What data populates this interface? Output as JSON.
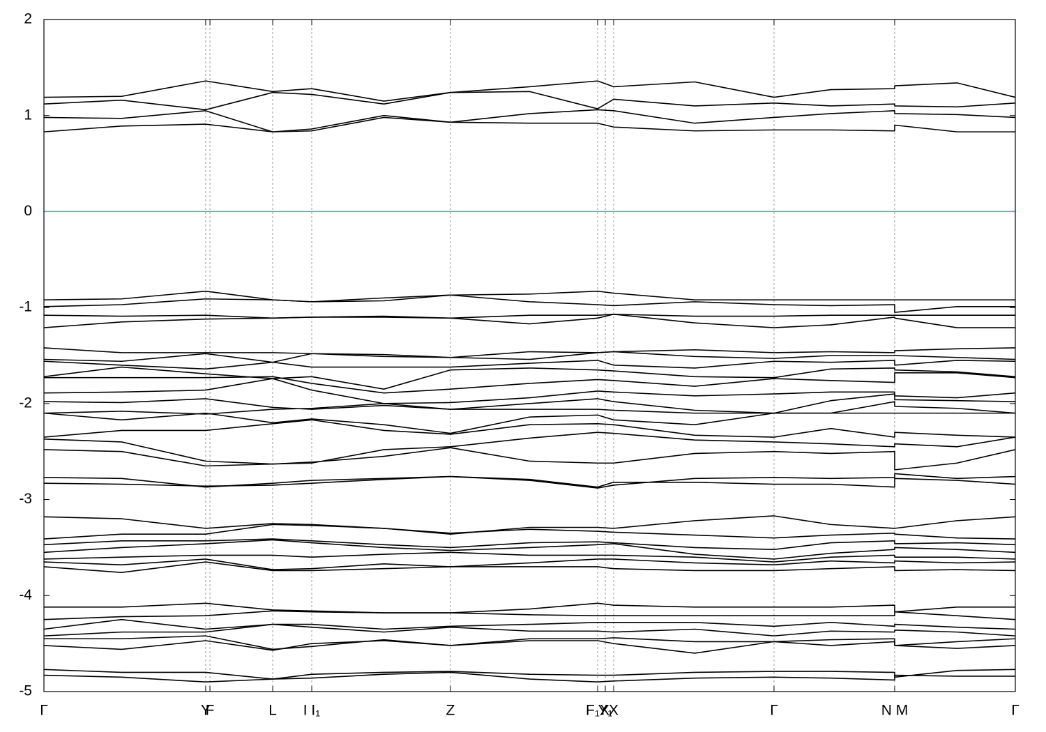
{
  "chart_data": {
    "type": "line",
    "color": "#000000",
    "xgrid": true,
    "xlim": [
      0,
      1
    ],
    "ylim": [
      -5,
      2
    ],
    "yticks": [
      2,
      1,
      0,
      -1,
      -2,
      -3,
      -4,
      -5
    ],
    "xticks": [
      {
        "value": 0,
        "label": "Γ"
      },
      {
        "value": 0.1665,
        "label": "Y"
      },
      {
        "value": 0.1709,
        "label": "F"
      },
      {
        "value": 0.2355,
        "label": "L"
      },
      {
        "value": 0.2757,
        "label": "I  I₁"
      },
      {
        "value": 0.4185,
        "label": "Z"
      },
      {
        "value": 0.57,
        "label": "F₁X"
      },
      {
        "value": 0.5779,
        "label": "Y₁"
      },
      {
        "value": 0.5865,
        "label": "X"
      },
      {
        "value": 0.7516,
        "label": "Γ"
      },
      {
        "value": 0.8758,
        "label": "N M"
      },
      {
        "value": 1,
        "label": "Γ"
      }
    ],
    "hline": {
      "value": 0,
      "color": "#4eb3c8"
    },
    "x": [
      0,
      0.08,
      0.1665,
      0.2355,
      0.2757,
      0.35,
      0.4185,
      0.5,
      0.57,
      0.5865,
      0.67,
      0.7516,
      0.81,
      0.8758,
      0.8758,
      0.94,
      1
    ],
    "series": [
      {
        "values": [
          1.19,
          1.2,
          1.36,
          1.25,
          1.28,
          1.15,
          1.24,
          1.3,
          1.36,
          1.3,
          1.35,
          1.19,
          1.27,
          1.28,
          1.31,
          1.34,
          1.19
        ]
      },
      {
        "values": [
          1.12,
          1.16,
          1.06,
          1.24,
          1.22,
          1.12,
          1.24,
          1.25,
          1.07,
          1.17,
          1.1,
          1.13,
          1.1,
          1.12,
          1.1,
          1.09,
          1.13
        ]
      },
      {
        "values": [
          0.98,
          0.97,
          1.05,
          0.83,
          0.86,
          1.0,
          0.93,
          1.02,
          1.06,
          1.05,
          0.92,
          0.98,
          1.02,
          1.05,
          1.02,
          1.01,
          0.98
        ]
      },
      {
        "values": [
          0.83,
          0.89,
          0.91,
          0.83,
          0.84,
          0.98,
          0.93,
          0.92,
          0.92,
          0.88,
          0.84,
          0.85,
          0.85,
          0.84,
          0.9,
          0.83,
          0.83
        ]
      },
      {
        "values": [
          -0.92,
          -0.91,
          -0.83,
          -0.92,
          -0.94,
          -0.9,
          -0.87,
          -0.86,
          -0.83,
          -0.85,
          -0.92,
          -0.92,
          -0.92,
          -0.92,
          -0.92,
          -0.92,
          -0.92
        ]
      },
      {
        "values": [
          -0.99,
          -0.97,
          -0.91,
          -0.92,
          -0.94,
          -0.93,
          -0.87,
          -0.94,
          -0.97,
          -0.98,
          -0.94,
          -0.97,
          -0.98,
          -0.97,
          -1.05,
          -0.99,
          -0.99
        ]
      },
      {
        "values": [
          -1.08,
          -1.09,
          -1.08,
          -1.11,
          -1.1,
          -1.09,
          -1.11,
          -1.08,
          -1.08,
          -1.07,
          -1.09,
          -1.09,
          -1.08,
          -1.08,
          -1.08,
          -1.08,
          -1.08
        ]
      },
      {
        "values": [
          -1.21,
          -1.15,
          -1.12,
          -1.11,
          -1.1,
          -1.1,
          -1.11,
          -1.17,
          -1.11,
          -1.07,
          -1.16,
          -1.21,
          -1.18,
          -1.1,
          -1.11,
          -1.21,
          -1.21
        ]
      },
      {
        "values": [
          -1.42,
          -1.47,
          -1.47,
          -1.47,
          -1.48,
          -1.49,
          -1.52,
          -1.46,
          -1.47,
          -1.46,
          -1.44,
          -1.47,
          -1.46,
          -1.47,
          -1.45,
          -1.43,
          -1.42
        ]
      },
      {
        "values": [
          -1.54,
          -1.56,
          -1.48,
          -1.57,
          -1.48,
          -1.51,
          -1.52,
          -1.54,
          -1.47,
          -1.46,
          -1.51,
          -1.53,
          -1.5,
          -1.5,
          -1.5,
          -1.52,
          -1.54
        ]
      },
      {
        "values": [
          -1.56,
          -1.6,
          -1.64,
          -1.57,
          -1.62,
          -1.62,
          -1.62,
          -1.58,
          -1.55,
          -1.6,
          -1.63,
          -1.56,
          -1.57,
          -1.55,
          -1.6,
          -1.55,
          -1.56
        ]
      },
      {
        "values": [
          -1.72,
          -1.62,
          -1.69,
          -1.74,
          -1.72,
          -1.85,
          -1.65,
          -1.63,
          -1.65,
          -1.66,
          -1.72,
          -1.73,
          -1.64,
          -1.63,
          -1.65,
          -1.67,
          -1.72
        ]
      },
      {
        "values": [
          -1.73,
          -1.73,
          -1.73,
          -1.72,
          -1.79,
          -1.89,
          -1.85,
          -1.79,
          -1.75,
          -1.76,
          -1.82,
          -1.74,
          -1.76,
          -1.78,
          -1.68,
          -1.68,
          -1.73
        ]
      },
      {
        "values": [
          -1.89,
          -1.88,
          -1.86,
          -1.74,
          -1.86,
          -2.0,
          -1.99,
          -1.94,
          -1.87,
          -1.88,
          -1.92,
          -1.9,
          -1.88,
          -1.88,
          -1.92,
          -1.94,
          -1.89
        ]
      },
      {
        "values": [
          -1.98,
          -1.99,
          -1.95,
          -2.04,
          -2.06,
          -2.02,
          -2.06,
          -2.0,
          -1.95,
          -1.98,
          -2.07,
          -2.1,
          -1.97,
          -1.9,
          -1.96,
          -1.97,
          -1.98
        ]
      },
      {
        "values": [
          -2.1,
          -2.08,
          -2.11,
          -2.06,
          -2.05,
          -2.0,
          -2.06,
          -2.06,
          -2.06,
          -2.07,
          -2.1,
          -2.1,
          -2.1,
          -1.98,
          -2.03,
          -2.05,
          -2.1
        ]
      },
      {
        "values": [
          -2.1,
          -2.17,
          -2.1,
          -2.2,
          -2.16,
          -2.22,
          -2.31,
          -2.14,
          -2.12,
          -2.17,
          -2.22,
          -2.1,
          -2.1,
          -2.1,
          -2.1,
          -2.1,
          -2.1
        ]
      },
      {
        "values": [
          -2.35,
          -2.28,
          -2.28,
          -2.21,
          -2.17,
          -2.28,
          -2.32,
          -2.22,
          -2.21,
          -2.22,
          -2.33,
          -2.35,
          -2.26,
          -2.35,
          -2.3,
          -2.33,
          -2.35
        ]
      },
      {
        "values": [
          -2.37,
          -2.4,
          -2.6,
          -2.63,
          -2.62,
          -2.48,
          -2.45,
          -2.36,
          -2.3,
          -2.31,
          -2.38,
          -2.4,
          -2.42,
          -2.45,
          -2.42,
          -2.45,
          -2.35
        ]
      },
      {
        "values": [
          -2.48,
          -2.5,
          -2.65,
          -2.63,
          -2.61,
          -2.55,
          -2.46,
          -2.6,
          -2.62,
          -2.62,
          -2.52,
          -2.5,
          -2.52,
          -2.5,
          -2.69,
          -2.62,
          -2.48
        ]
      },
      {
        "values": [
          -2.77,
          -2.78,
          -2.87,
          -2.83,
          -2.8,
          -2.78,
          -2.76,
          -2.8,
          -2.88,
          -2.85,
          -2.78,
          -2.77,
          -2.78,
          -2.77,
          -2.73,
          -2.78,
          -2.76
        ]
      },
      {
        "values": [
          -2.83,
          -2.84,
          -2.86,
          -2.85,
          -2.83,
          -2.79,
          -2.76,
          -2.79,
          -2.87,
          -2.82,
          -2.82,
          -2.84,
          -2.84,
          -2.87,
          -2.78,
          -2.8,
          -2.84
        ]
      },
      {
        "values": [
          -3.18,
          -3.2,
          -3.3,
          -3.25,
          -3.26,
          -3.3,
          -3.36,
          -3.29,
          -3.29,
          -3.3,
          -3.22,
          -3.17,
          -3.26,
          -3.3,
          -3.3,
          -3.22,
          -3.18
        ]
      },
      {
        "values": [
          -3.41,
          -3.36,
          -3.36,
          -3.26,
          -3.27,
          -3.3,
          -3.35,
          -3.31,
          -3.33,
          -3.34,
          -3.37,
          -3.4,
          -3.37,
          -3.35,
          -3.36,
          -3.4,
          -3.41
        ]
      },
      {
        "values": [
          -3.47,
          -3.43,
          -3.43,
          -3.41,
          -3.43,
          -3.47,
          -3.5,
          -3.45,
          -3.44,
          -3.45,
          -3.5,
          -3.52,
          -3.45,
          -3.43,
          -3.46,
          -3.45,
          -3.47
        ]
      },
      {
        "values": [
          -3.55,
          -3.5,
          -3.46,
          -3.42,
          -3.45,
          -3.5,
          -3.53,
          -3.5,
          -3.47,
          -3.46,
          -3.57,
          -3.62,
          -3.56,
          -3.52,
          -3.5,
          -3.52,
          -3.55
        ]
      },
      {
        "values": [
          -3.62,
          -3.6,
          -3.58,
          -3.58,
          -3.6,
          -3.57,
          -3.55,
          -3.58,
          -3.58,
          -3.58,
          -3.6,
          -3.65,
          -3.6,
          -3.58,
          -3.6,
          -3.6,
          -3.62
        ]
      },
      {
        "values": [
          -3.65,
          -3.68,
          -3.62,
          -3.73,
          -3.72,
          -3.67,
          -3.7,
          -3.66,
          -3.62,
          -3.62,
          -3.66,
          -3.68,
          -3.64,
          -3.66,
          -3.64,
          -3.66,
          -3.65
        ]
      },
      {
        "values": [
          -3.7,
          -3.76,
          -3.65,
          -3.74,
          -3.74,
          -3.72,
          -3.7,
          -3.7,
          -3.7,
          -3.72,
          -3.74,
          -3.74,
          -3.72,
          -3.7,
          -3.74,
          -3.73,
          -3.74
        ]
      },
      {
        "values": [
          -4.12,
          -4.12,
          -4.08,
          -4.15,
          -4.16,
          -4.18,
          -4.18,
          -4.14,
          -4.08,
          -4.1,
          -4.12,
          -4.12,
          -4.12,
          -4.1,
          -4.17,
          -4.12,
          -4.12
        ]
      },
      {
        "values": [
          -4.25,
          -4.22,
          -4.21,
          -4.16,
          -4.17,
          -4.18,
          -4.18,
          -4.2,
          -4.21,
          -4.21,
          -4.21,
          -4.21,
          -4.21,
          -4.21,
          -4.17,
          -4.21,
          -4.25
        ]
      },
      {
        "values": [
          -4.35,
          -4.25,
          -4.35,
          -4.3,
          -4.3,
          -4.35,
          -4.32,
          -4.3,
          -4.28,
          -4.28,
          -4.28,
          -4.32,
          -4.28,
          -4.32,
          -4.3,
          -4.33,
          -4.35
        ]
      },
      {
        "values": [
          -4.42,
          -4.38,
          -4.38,
          -4.3,
          -4.33,
          -4.38,
          -4.33,
          -4.37,
          -4.37,
          -4.38,
          -4.35,
          -4.42,
          -4.37,
          -4.38,
          -4.36,
          -4.38,
          -4.42
        ]
      },
      {
        "values": [
          -4.45,
          -4.45,
          -4.42,
          -4.56,
          -4.53,
          -4.46,
          -4.52,
          -4.45,
          -4.45,
          -4.44,
          -4.48,
          -4.48,
          -4.46,
          -4.45,
          -4.52,
          -4.48,
          -4.45
        ]
      },
      {
        "values": [
          -4.52,
          -4.56,
          -4.47,
          -4.57,
          -4.5,
          -4.47,
          -4.52,
          -4.47,
          -4.47,
          -4.5,
          -4.6,
          -4.48,
          -4.52,
          -4.48,
          -4.52,
          -4.55,
          -4.52
        ]
      },
      {
        "values": [
          -4.77,
          -4.8,
          -4.8,
          -4.87,
          -4.82,
          -4.8,
          -4.79,
          -4.82,
          -4.83,
          -4.83,
          -4.8,
          -4.79,
          -4.79,
          -4.8,
          -4.85,
          -4.78,
          -4.77
        ]
      },
      {
        "values": [
          -4.83,
          -4.85,
          -4.9,
          -4.87,
          -4.86,
          -4.82,
          -4.8,
          -4.87,
          -4.9,
          -4.89,
          -4.86,
          -4.85,
          -4.86,
          -4.88,
          -4.83,
          -4.84,
          -4.84
        ]
      }
    ]
  }
}
